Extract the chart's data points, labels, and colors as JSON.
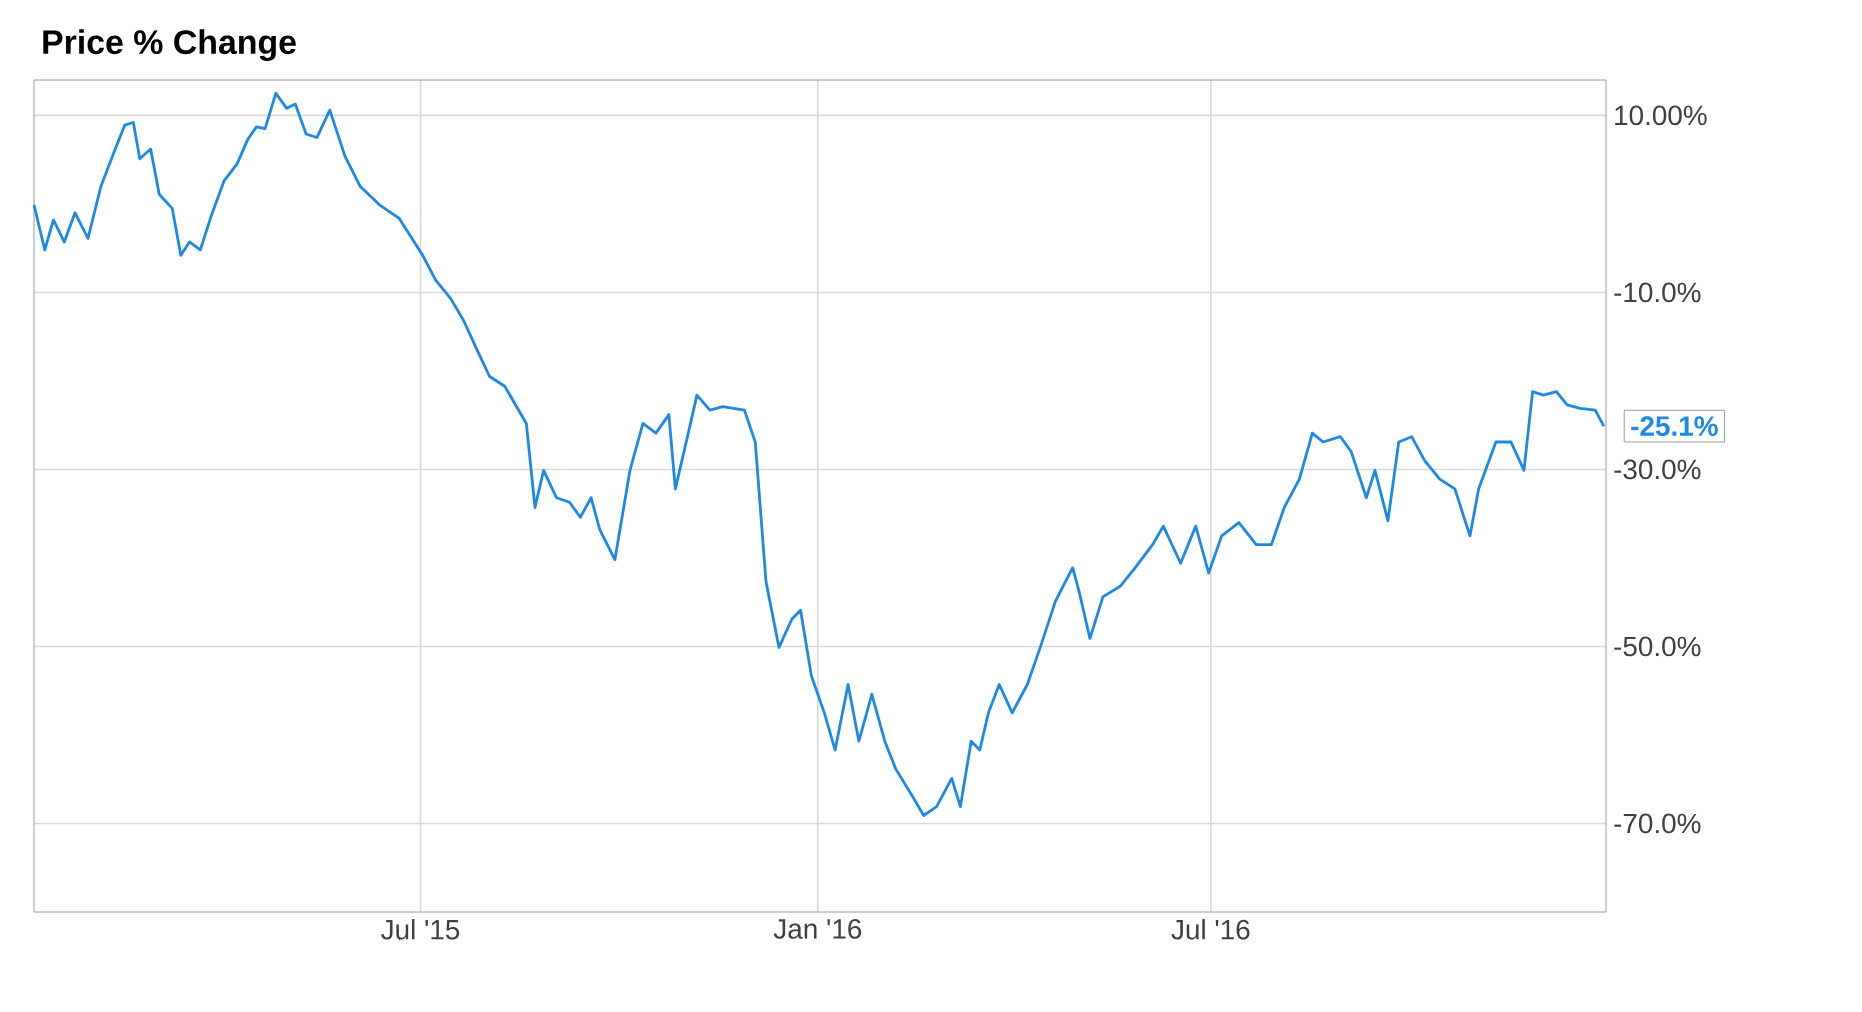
{
  "chart_data": {
    "type": "line",
    "title": "Price % Change",
    "color": "#1e88e5",
    "grid": true,
    "xlim": [
      "2015-01-03",
      "2016-12-31"
    ],
    "ylim": [
      -80,
      14
    ],
    "xticks": [
      {
        "value": "2015-07-01",
        "label": "Jul '15"
      },
      {
        "value": "2016-01-01",
        "label": "Jan '16"
      },
      {
        "value": "2016-07-01",
        "label": "Jul '16"
      }
    ],
    "yticks": [
      {
        "value": 10,
        "label": "10.00%"
      },
      {
        "value": -10,
        "label": "-10.0%"
      },
      {
        "value": -30,
        "label": "-30.0%"
      },
      {
        "value": -50,
        "label": "-50.0%"
      },
      {
        "value": -70,
        "label": "-70.0%"
      }
    ],
    "annotations": [
      {
        "text": "-25.1%",
        "x": "2016-12-30",
        "y": -25.1
      }
    ],
    "x": [
      "2015-01-03",
      "2015-01-08",
      "2015-01-12",
      "2015-01-17",
      "2015-01-22",
      "2015-01-28",
      "2015-02-03",
      "2015-02-09",
      "2015-02-14",
      "2015-02-18",
      "2015-02-21",
      "2015-02-26",
      "2015-03-02",
      "2015-03-08",
      "2015-03-12",
      "2015-03-16",
      "2015-03-21",
      "2015-03-26",
      "2015-04-01",
      "2015-04-07",
      "2015-04-12",
      "2015-04-16",
      "2015-04-20",
      "2015-04-25",
      "2015-04-30",
      "2015-05-04",
      "2015-05-09",
      "2015-05-14",
      "2015-05-20",
      "2015-05-27",
      "2015-06-03",
      "2015-06-12",
      "2015-06-21",
      "2015-07-02",
      "2015-07-08",
      "2015-07-15",
      "2015-07-21",
      "2015-07-27",
      "2015-08-02",
      "2015-08-09",
      "2015-08-14",
      "2015-08-19",
      "2015-08-23",
      "2015-08-27",
      "2015-09-02",
      "2015-09-08",
      "2015-09-13",
      "2015-09-18",
      "2015-09-22",
      "2015-09-29",
      "2015-10-06",
      "2015-10-12",
      "2015-10-18",
      "2015-10-24",
      "2015-10-27",
      "2015-11-02",
      "2015-11-06",
      "2015-11-12",
      "2015-11-18",
      "2015-11-28",
      "2015-12-03",
      "2015-12-08",
      "2015-12-14",
      "2015-12-20",
      "2015-12-24",
      "2015-12-29",
      "2016-01-04",
      "2016-01-09",
      "2016-01-15",
      "2016-01-20",
      "2016-01-26",
      "2016-02-01",
      "2016-02-06",
      "2016-02-14",
      "2016-02-19",
      "2016-02-25",
      "2016-03-03",
      "2016-03-07",
      "2016-03-12",
      "2016-03-16",
      "2016-03-20",
      "2016-03-25",
      "2016-03-31",
      "2016-04-07",
      "2016-04-13",
      "2016-04-20",
      "2016-04-28",
      "2016-05-01",
      "2016-05-06",
      "2016-05-12",
      "2016-05-20",
      "2016-05-27",
      "2016-06-04",
      "2016-06-09",
      "2016-06-17",
      "2016-06-24",
      "2016-06-30",
      "2016-07-06",
      "2016-07-14",
      "2016-07-22",
      "2016-07-29",
      "2016-08-04",
      "2016-08-11",
      "2016-08-17",
      "2016-08-22",
      "2016-08-30",
      "2016-09-04",
      "2016-09-11",
      "2016-09-15",
      "2016-09-21",
      "2016-09-26",
      "2016-10-02",
      "2016-10-08",
      "2016-10-15",
      "2016-10-22",
      "2016-10-29",
      "2016-11-02",
      "2016-11-10",
      "2016-11-17",
      "2016-11-23",
      "2016-11-27",
      "2016-12-02",
      "2016-12-08",
      "2016-12-13",
      "2016-12-19",
      "2016-12-26",
      "2016-12-30"
    ],
    "values": [
      -0.1,
      -5.2,
      -1.8,
      -4.3,
      -1.0,
      -3.9,
      2.0,
      5.8,
      8.9,
      9.2,
      5.1,
      6.2,
      1.1,
      -0.5,
      -5.8,
      -4.3,
      -5.2,
      -1.4,
      2.6,
      4.5,
      7.3,
      8.7,
      8.5,
      12.5,
      10.8,
      11.3,
      7.9,
      7.5,
      10.6,
      5.4,
      2.0,
      -0.1,
      -1.6,
      -5.8,
      -8.6,
      -10.7,
      -13.2,
      -16.4,
      -19.5,
      -20.6,
      -22.7,
      -24.8,
      -34.3,
      -30.1,
      -33.2,
      -33.7,
      -35.4,
      -33.2,
      -36.8,
      -40.2,
      -30.1,
      -24.8,
      -25.9,
      -23.8,
      -32.2,
      -25.9,
      -21.6,
      -23.3,
      -22.9,
      -23.3,
      -26.9,
      -42.7,
      -50.1,
      -46.9,
      -45.9,
      -53.3,
      -57.5,
      -61.7,
      -54.3,
      -60.7,
      -55.4,
      -60.7,
      -63.8,
      -67.0,
      -69.1,
      -68.1,
      -64.9,
      -68.1,
      -60.7,
      -61.7,
      -57.5,
      -54.3,
      -57.5,
      -54.3,
      -50.1,
      -44.9,
      -41.1,
      -43.8,
      -49.1,
      -44.4,
      -43.2,
      -41.1,
      -38.5,
      -36.4,
      -40.6,
      -36.4,
      -41.7,
      -37.5,
      -36.0,
      -38.5,
      -38.5,
      -34.3,
      -31.1,
      -25.9,
      -26.9,
      -26.3,
      -28.0,
      -33.2,
      -30.1,
      -35.8,
      -26.9,
      -26.3,
      -29.0,
      -31.1,
      -32.2,
      -37.5,
      -32.2,
      -26.9,
      -26.9,
      -30.1,
      -21.2,
      -21.6,
      -21.2,
      -22.7,
      -23.1,
      -23.3,
      -25.1
    ]
  }
}
